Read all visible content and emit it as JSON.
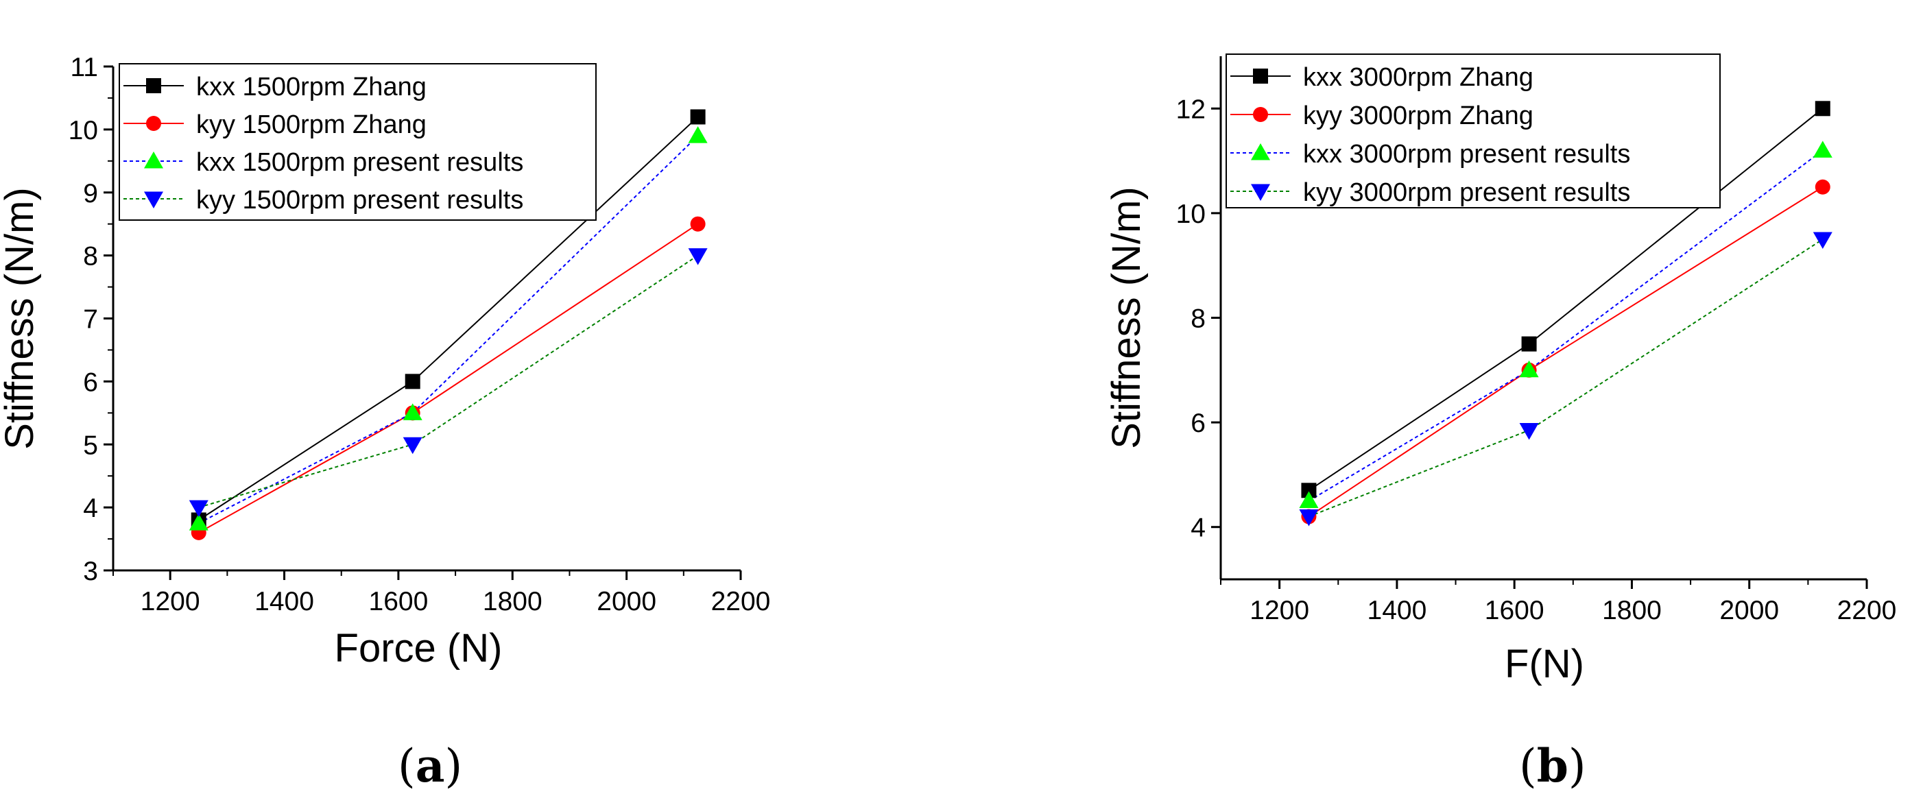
{
  "chart_data": [
    {
      "type": "line",
      "panel_label": "a",
      "title": "",
      "xlabel": "Force (N)",
      "ylabel": "Stiffness (N/m)",
      "xlim": [
        1100,
        2200
      ],
      "ylim": [
        3,
        11
      ],
      "xticks": [
        1200,
        1400,
        1600,
        1800,
        2000,
        2200
      ],
      "yticks": [
        3,
        4,
        5,
        6,
        7,
        8,
        9,
        10,
        11
      ],
      "legend_position": "top-left",
      "series": [
        {
          "name": "kxx 1500rpm Zhang",
          "color": "#000000",
          "line_style": "solid",
          "marker": "square",
          "x": [
            1250,
            1625,
            2125
          ],
          "y": [
            3.8,
            6.0,
            10.2
          ]
        },
        {
          "name": "kyy 1500rpm Zhang",
          "color": "#ff0000",
          "line_style": "solid",
          "marker": "circle",
          "x": [
            1250,
            1625,
            2125
          ],
          "y": [
            3.6,
            5.5,
            8.5
          ]
        },
        {
          "name": "kxx 1500rpm present results",
          "color": "#0000ff",
          "marker_color": "#00ff00",
          "line_style": "dotted",
          "marker": "triangle-up",
          "x": [
            1250,
            1625,
            2125
          ],
          "y": [
            3.75,
            5.5,
            9.9
          ]
        },
        {
          "name": "kyy 1500rpm present results",
          "color": "#008000",
          "marker_color": "#0000ff",
          "line_style": "dotted",
          "marker": "triangle-down",
          "x": [
            1250,
            1625,
            2125
          ],
          "y": [
            4.0,
            5.0,
            8.0
          ]
        }
      ]
    },
    {
      "type": "line",
      "panel_label": "b",
      "title": "",
      "xlabel": "F(N)",
      "ylabel": "Stiffness (N/m)",
      "xlim": [
        1100,
        2200
      ],
      "ylim": [
        3,
        13
      ],
      "xticks": [
        1200,
        1400,
        1600,
        1800,
        2000,
        2200
      ],
      "yticks": [
        4,
        6,
        8,
        10,
        12
      ],
      "legend_position": "top-left",
      "series": [
        {
          "name": "kxx 3000rpm Zhang",
          "color": "#000000",
          "line_style": "solid",
          "marker": "square",
          "x": [
            1250,
            1625,
            2125
          ],
          "y": [
            4.7,
            7.5,
            12.0
          ]
        },
        {
          "name": "kyy 3000rpm Zhang",
          "color": "#ff0000",
          "line_style": "solid",
          "marker": "circle",
          "x": [
            1250,
            1625,
            2125
          ],
          "y": [
            4.2,
            7.0,
            10.5
          ]
        },
        {
          "name": "kxx 3000rpm present results",
          "color": "#0000ff",
          "marker_color": "#00ff00",
          "line_style": "dotted",
          "marker": "triangle-up",
          "x": [
            1250,
            1625,
            2125
          ],
          "y": [
            4.5,
            7.0,
            11.2
          ]
        },
        {
          "name": "kyy 3000rpm present results",
          "color": "#008000",
          "marker_color": "#0000ff",
          "line_style": "dotted",
          "marker": "triangle-down",
          "x": [
            1250,
            1625,
            2125
          ],
          "y": [
            4.2,
            5.85,
            9.5
          ]
        }
      ]
    }
  ]
}
